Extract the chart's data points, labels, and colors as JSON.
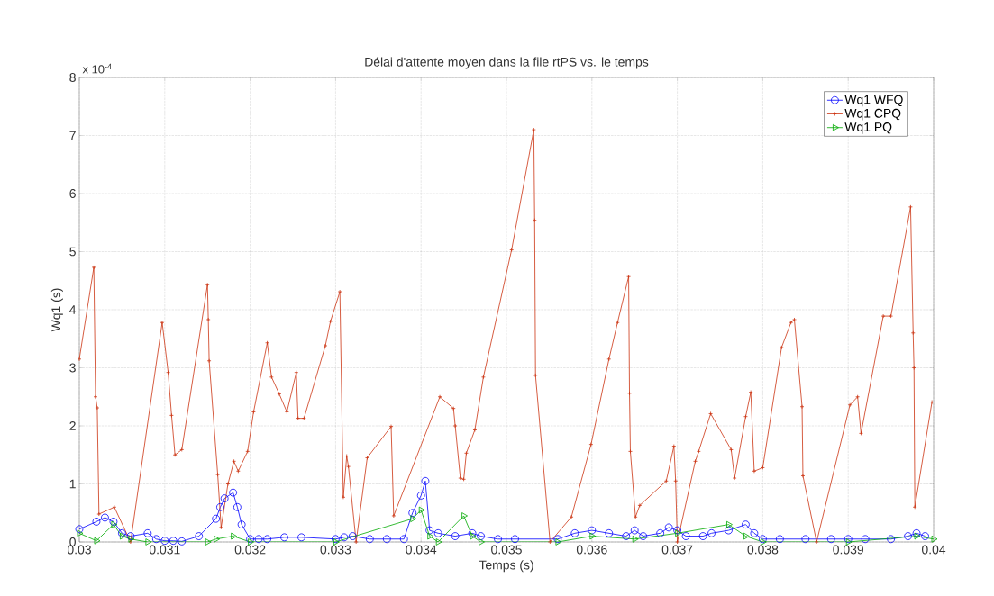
{
  "chart_data": {
    "type": "line",
    "title": "Délai d'attente moyen dans la file rtPS vs. le temps",
    "xlabel": "Temps (s)",
    "ylabel": "Wq1 (s)",
    "annotations": [
      "x 10$^{-4}$"
    ],
    "xlim": [
      0.03,
      0.04
    ],
    "ylim": [
      0,
      8
    ],
    "xticks": [
      0.03,
      0.031,
      0.032,
      0.033,
      0.034,
      0.035,
      0.036,
      0.037,
      0.038,
      0.039,
      0.04
    ],
    "yticks": [
      0,
      1,
      2,
      3,
      4,
      5,
      6,
      7,
      8
    ],
    "grid": true,
    "legend": "top right",
    "line_style": "solid",
    "series": [
      {
        "name": "Wq1 WFQ",
        "color": "#0000ff",
        "marker": "circle",
        "x": [
          0.03,
          0.0302,
          0.0303,
          0.0304,
          0.0305,
          0.0306,
          0.0308,
          0.0309,
          0.031,
          0.0311,
          0.0312,
          0.0314,
          0.0316,
          0.03165,
          0.0317,
          0.0318,
          0.03185,
          0.0319,
          0.032,
          0.0321,
          0.0322,
          0.0324,
          0.0326,
          0.033,
          0.0331,
          0.0332,
          0.0334,
          0.0336,
          0.0338,
          0.0339,
          0.034,
          0.03405,
          0.0341,
          0.0342,
          0.0344,
          0.0346,
          0.0347,
          0.0349,
          0.0351,
          0.0356,
          0.0358,
          0.036,
          0.0362,
          0.0364,
          0.0365,
          0.0366,
          0.0368,
          0.0369,
          0.037,
          0.0371,
          0.0373,
          0.0374,
          0.0376,
          0.0378,
          0.0379,
          0.038,
          0.0382,
          0.0385,
          0.0388,
          0.039,
          0.0392,
          0.0395,
          0.0397,
          0.0398,
          0.0399
        ],
        "values": [
          0.22,
          0.35,
          0.42,
          0.35,
          0.15,
          0.1,
          0.15,
          0.05,
          0.02,
          0.02,
          0.01,
          0.1,
          0.4,
          0.6,
          0.75,
          0.85,
          0.6,
          0.3,
          0.05,
          0.05,
          0.05,
          0.08,
          0.08,
          0.05,
          0.08,
          0.1,
          0.05,
          0.05,
          0.05,
          0.5,
          0.8,
          1.05,
          0.2,
          0.15,
          0.1,
          0.15,
          0.1,
          0.05,
          0.05,
          0.05,
          0.15,
          0.2,
          0.15,
          0.1,
          0.2,
          0.1,
          0.15,
          0.25,
          0.2,
          0.1,
          0.1,
          0.15,
          0.2,
          0.3,
          0.15,
          0.05,
          0.05,
          0.05,
          0.05,
          0.05,
          0.05,
          0.05,
          0.1,
          0.15,
          0.1
        ]
      },
      {
        "name": "Wq1 CPQ",
        "color": "#cc3311",
        "marker": "cross",
        "x": [
          0.03,
          0.03017,
          0.03019,
          0.03021,
          0.03023,
          0.03041,
          0.0306,
          0.03097,
          0.03104,
          0.03108,
          0.03112,
          0.0312,
          0.0315,
          0.03151,
          0.03152,
          0.03162,
          0.03166,
          0.03174,
          0.03181,
          0.03186,
          0.03197,
          0.03204,
          0.0322,
          0.03225,
          0.03234,
          0.03243,
          0.03254,
          0.03256,
          0.03263,
          0.03288,
          0.03294,
          0.03305,
          0.03309,
          0.03313,
          0.03315,
          0.03324,
          0.03337,
          0.03365,
          0.03368,
          0.03422,
          0.03438,
          0.0344,
          0.03446,
          0.0345,
          0.03453,
          0.03463,
          0.03473,
          0.03506,
          0.03532,
          0.03533,
          0.03534,
          0.03551,
          0.03576,
          0.03599,
          0.0362,
          0.0363,
          0.03643,
          0.03644,
          0.03645,
          0.03651,
          0.03656,
          0.03687,
          0.03696,
          0.03698,
          0.037,
          0.03721,
          0.03725,
          0.03739,
          0.03763,
          0.03767,
          0.0378,
          0.03786,
          0.0379,
          0.038,
          0.03822,
          0.03833,
          0.03837,
          0.03846,
          0.03847,
          0.03863,
          0.03902,
          0.03911,
          0.03915,
          0.03941,
          0.0395,
          0.03973,
          0.03976,
          0.03977,
          0.03978,
          0.03998
        ],
        "values": [
          3.15,
          4.73,
          2.5,
          2.31,
          0.48,
          0.6,
          0.0,
          3.78,
          2.92,
          2.18,
          1.5,
          1.59,
          4.43,
          3.83,
          3.12,
          1.16,
          0.25,
          1.0,
          1.39,
          1.22,
          1.56,
          2.24,
          3.43,
          2.84,
          2.55,
          2.24,
          2.92,
          2.13,
          2.13,
          3.38,
          3.8,
          4.31,
          0.77,
          1.48,
          1.3,
          0.0,
          1.45,
          1.99,
          0.45,
          2.5,
          2.3,
          2.0,
          1.1,
          1.08,
          1.53,
          1.93,
          2.84,
          5.03,
          7.1,
          5.54,
          2.87,
          0.0,
          0.43,
          1.68,
          3.15,
          3.78,
          4.57,
          2.56,
          1.56,
          0.43,
          0.63,
          1.05,
          1.65,
          1.05,
          0.0,
          1.39,
          1.56,
          2.21,
          1.59,
          1.1,
          2.16,
          2.58,
          1.22,
          1.28,
          3.35,
          3.78,
          3.83,
          2.33,
          1.14,
          0.0,
          2.36,
          2.5,
          1.87,
          3.89,
          3.89,
          5.77,
          3.6,
          3.0,
          0.6,
          2.41
        ]
      },
      {
        "name": "Wq1 PQ",
        "color": "#00aa00",
        "marker": "triangle",
        "x": [
          0.03,
          0.0302,
          0.0304,
          0.0305,
          0.0306,
          0.0308,
          0.0315,
          0.0316,
          0.0318,
          0.032,
          0.033,
          0.0339,
          0.034,
          0.0341,
          0.0342,
          0.0345,
          0.0346,
          0.0347,
          0.0356,
          0.036,
          0.0365,
          0.037,
          0.0376,
          0.0378,
          0.038,
          0.039,
          0.0398,
          0.04
        ],
        "values": [
          0.15,
          0.02,
          0.3,
          0.1,
          0.05,
          0.0,
          0.0,
          0.05,
          0.1,
          0.0,
          0.0,
          0.4,
          0.55,
          0.1,
          0.0,
          0.45,
          0.1,
          0.0,
          0.0,
          0.1,
          0.05,
          0.15,
          0.3,
          0.1,
          0.0,
          0.0,
          0.1,
          0.05
        ]
      }
    ]
  }
}
